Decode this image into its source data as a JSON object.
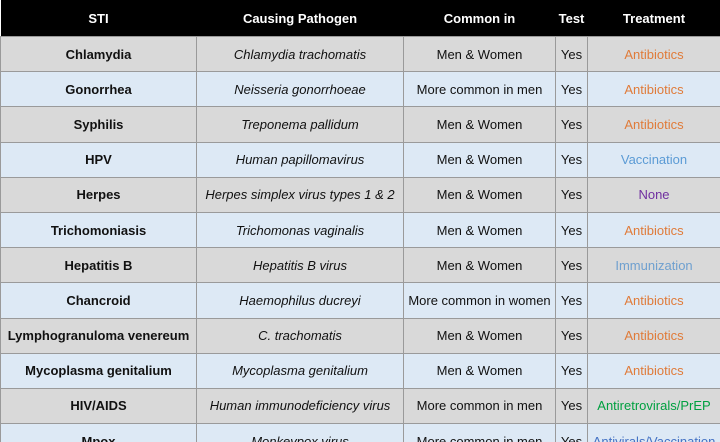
{
  "table": {
    "header": [
      "STI",
      "Causing Pathogen",
      "Common in",
      "Test",
      "Treatment"
    ],
    "rows": [
      [
        "Chlamydia",
        "Chlamydia trachomatis",
        "Men & Women",
        "Yes",
        "Antibiotics"
      ],
      [
        "Gonorrhea",
        "Neisseria gonorrhoeae",
        "More common in men",
        "Yes",
        "Antibiotics"
      ],
      [
        "Syphilis",
        "Treponema pallidum",
        "Men & Women",
        "Yes",
        "Antibiotics"
      ],
      [
        "HPV",
        "Human papillomavirus",
        "Men & Women",
        "Yes",
        "Vaccination"
      ],
      [
        "Herpes",
        "Herpes simplex virus types 1 & 2",
        "Men & Women",
        "Yes",
        "None"
      ],
      [
        "Trichomoniasis",
        "Trichomonas vaginalis",
        "Men & Women",
        "Yes",
        "Antibiotics"
      ],
      [
        "Hepatitis B",
        "Hepatitis B virus",
        "Men & Women",
        "Yes",
        "Immunization"
      ],
      [
        "Chancroid",
        "Haemophilus ducreyi",
        "More common in women",
        "Yes",
        "Antibiotics"
      ],
      [
        "Lymphogranuloma venereum",
        "C. trachomatis",
        "Men & Women",
        "Yes",
        "Antibiotics"
      ],
      [
        "Mycoplasma genitalium",
        "Mycoplasma genitalium",
        "Men & Women",
        "Yes",
        "Antibiotics"
      ],
      [
        "HIV/AIDS",
        "Human immunodeficiency virus",
        "More common in men",
        "Yes",
        "Antiretrovirals/PrEP"
      ],
      [
        "Mpox",
        "Monkeypox virus",
        "More common in men",
        "Yes",
        "Antivirals/Vaccination"
      ]
    ],
    "treatment_colors": [
      "#e07b39",
      "#e07b39",
      "#e07b39",
      "#5b9bd5",
      "#7030a0",
      "#e07b39",
      "#6fa0cf",
      "#e07b39",
      "#e07b39",
      "#e07b39",
      "#00a040",
      "#4472c4"
    ]
  }
}
